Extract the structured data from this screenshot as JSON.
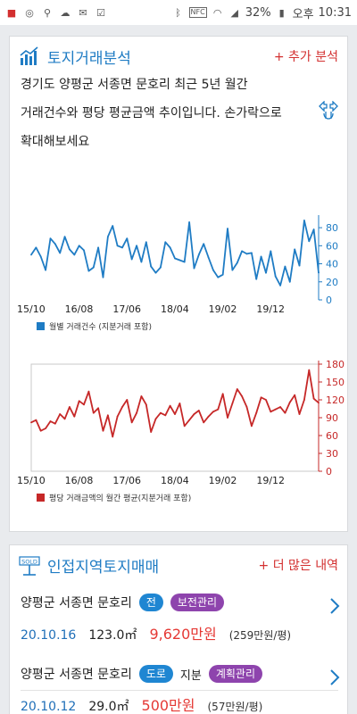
{
  "status": {
    "battery": "32%",
    "ampm": "오후",
    "time": "10:31",
    "nfc": "NFC",
    "icons": [
      "notification-icon",
      "accessibility-icon",
      "usb-icon",
      "weather-icon",
      "email-icon",
      "check-icon",
      "bluetooth-icon",
      "nfc-icon",
      "wifi-icon",
      "signal-icon",
      "battery-icon"
    ]
  },
  "analysis": {
    "title": "토지거래분석",
    "add_label": "+ 추가 분석",
    "desc_lines": [
      "경기도 양평군 서종면 문호리 최근 5년 월간",
      "거래건수와 평당 평균금액 추이입니다. 손가락으로",
      "확대해보세요"
    ],
    "colors": {
      "accent": "#1f7cc4",
      "action": "#d32f2f"
    }
  },
  "chart_data": [
    {
      "type": "line",
      "x": [
        "15/10",
        "15/11",
        "15/12",
        "16/01",
        "16/02",
        "16/03",
        "16/04",
        "16/05",
        "16/06",
        "16/07",
        "16/08",
        "16/09",
        "16/10",
        "16/11",
        "16/12",
        "17/01",
        "17/02",
        "17/03",
        "17/04",
        "17/05",
        "17/06",
        "17/07",
        "17/08",
        "17/09",
        "17/10",
        "17/11",
        "17/12",
        "18/01",
        "18/02",
        "18/03",
        "18/04",
        "18/05",
        "18/06",
        "18/07",
        "18/08",
        "18/09",
        "18/10",
        "18/11",
        "18/12",
        "19/01",
        "19/02",
        "19/03",
        "19/04",
        "19/05",
        "19/06",
        "19/07",
        "19/08",
        "19/09",
        "19/10",
        "19/11",
        "19/12",
        "20/01",
        "20/02",
        "20/03",
        "20/04",
        "20/05",
        "20/06",
        "20/07",
        "20/08",
        "20/09",
        "20/10"
      ],
      "xticks": [
        "15/10",
        "16/08",
        "17/06",
        "18/04",
        "19/02",
        "19/12"
      ],
      "series": [
        {
          "name": "월별 거래건수 (지분거래 포함)",
          "color": "#1f7cc4",
          "values": [
            50,
            58,
            48,
            33,
            68,
            62,
            52,
            70,
            56,
            50,
            60,
            55,
            32,
            36,
            58,
            25,
            70,
            82,
            60,
            58,
            68,
            45,
            60,
            42,
            64,
            37,
            30,
            36,
            64,
            58,
            46,
            44,
            42,
            86,
            35,
            50,
            62,
            47,
            33,
            25,
            28,
            79,
            33,
            41,
            54,
            51,
            52,
            23,
            48,
            30,
            54,
            26,
            16,
            37,
            20,
            56,
            38,
            88,
            65,
            78,
            30
          ]
        }
      ],
      "ylim": [
        0,
        90
      ],
      "yticks": [
        0,
        20,
        40,
        60,
        80
      ]
    },
    {
      "type": "line",
      "x": [
        "15/10",
        "15/11",
        "15/12",
        "16/01",
        "16/02",
        "16/03",
        "16/04",
        "16/05",
        "16/06",
        "16/07",
        "16/08",
        "16/09",
        "16/10",
        "16/11",
        "16/12",
        "17/01",
        "17/02",
        "17/03",
        "17/04",
        "17/05",
        "17/06",
        "17/07",
        "17/08",
        "17/09",
        "17/10",
        "17/11",
        "17/12",
        "18/01",
        "18/02",
        "18/03",
        "18/04",
        "18/05",
        "18/06",
        "18/07",
        "18/08",
        "18/09",
        "18/10",
        "18/11",
        "18/12",
        "19/01",
        "19/02",
        "19/03",
        "19/04",
        "19/05",
        "19/06",
        "19/07",
        "19/08",
        "19/09",
        "19/10",
        "19/11",
        "19/12",
        "20/01",
        "20/02",
        "20/03",
        "20/04",
        "20/05",
        "20/06",
        "20/07",
        "20/08",
        "20/09",
        "20/10"
      ],
      "xticks": [
        "15/10",
        "16/08",
        "17/06",
        "18/04",
        "19/02",
        "19/12"
      ],
      "series": [
        {
          "name": "평당 거래금액의 월간 평균(지분거래 포함)",
          "color": "#c62828",
          "values": [
            82,
            86,
            68,
            72,
            84,
            80,
            96,
            88,
            108,
            92,
            118,
            112,
            134,
            98,
            106,
            68,
            94,
            58,
            92,
            108,
            120,
            82,
            98,
            126,
            112,
            66,
            88,
            98,
            94,
            110,
            96,
            114,
            76,
            86,
            96,
            102,
            82,
            92,
            100,
            104,
            130,
            90,
            114,
            138,
            126,
            108,
            76,
            98,
            124,
            120,
            100,
            104,
            108,
            98,
            116,
            128,
            96,
            120,
            170,
            122,
            115
          ]
        }
      ],
      "ylim": [
        0,
        180
      ],
      "yticks": [
        0,
        30,
        60,
        90,
        120,
        150,
        180
      ]
    }
  ],
  "nearby": {
    "title": "인접지역토지매매",
    "more_label": "+ 더 많은 내역",
    "icon_text": "SOLD",
    "items": [
      {
        "location": "양평군 서종면 문호리",
        "tag1": "전",
        "tag2": "",
        "tag3": "보전관리",
        "date": "20.10.16",
        "area": "123.0㎡",
        "price": "9,620만원",
        "unit_price": "(259만원/평)"
      },
      {
        "location": "양평군 서종면 문호리",
        "tag1": "도로",
        "tag2": "지분",
        "tag3": "계획관리",
        "date": "20.10.12",
        "area": "29.0㎡",
        "price": "500만원",
        "unit_price": "(57만원/평)"
      }
    ]
  }
}
